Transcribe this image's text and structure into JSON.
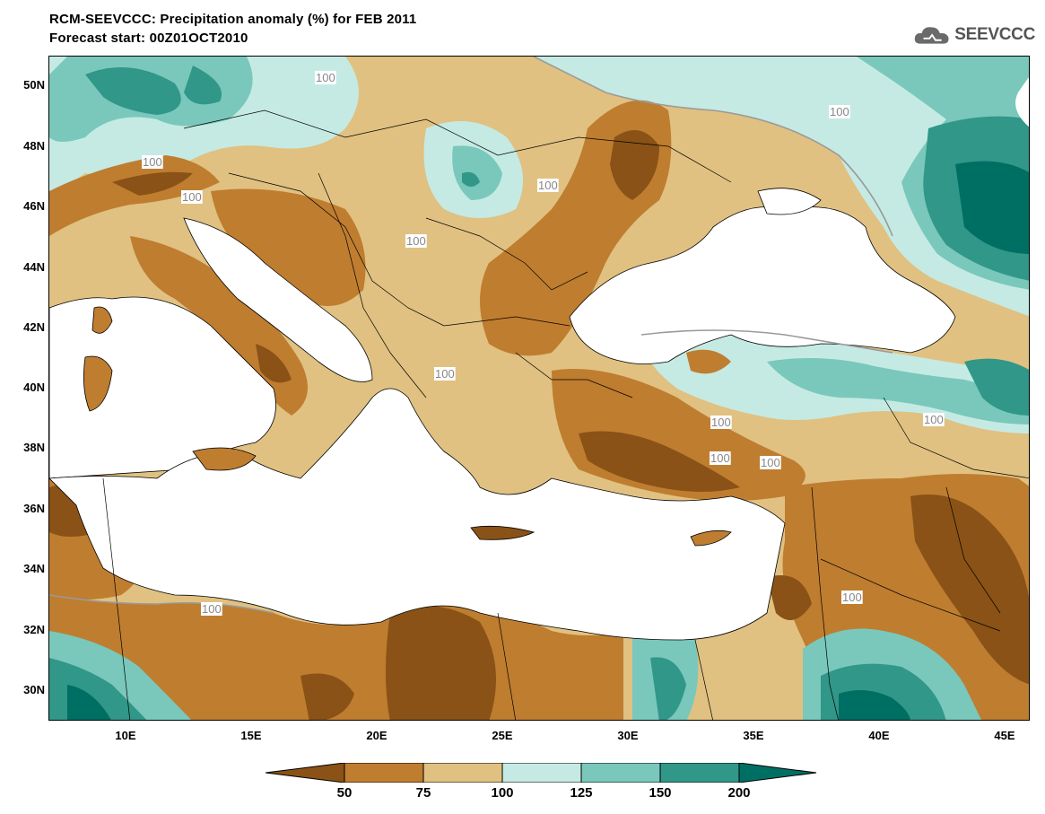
{
  "header": {
    "title_line1": "RCM-SEEVCCC: Precipitation anomaly (%) for FEB 2011",
    "title_line2": "Forecast start: 00Z01OCT2010"
  },
  "logo": {
    "text": "SEEVCCC",
    "icon": "cloud-icon"
  },
  "map": {
    "type": "filled-contour-map",
    "lon_range": [
      "7E",
      "46E"
    ],
    "lat_range": [
      "29N",
      "51N"
    ],
    "latitude_labels": [
      "50N",
      "48N",
      "46N",
      "44N",
      "42N",
      "40N",
      "38N",
      "36N",
      "34N",
      "32N",
      "30N"
    ],
    "longitude_labels": [
      "10E",
      "15E",
      "20E",
      "25E",
      "30E",
      "35E",
      "40E",
      "45E"
    ],
    "contour_label": "100"
  },
  "colorbar": {
    "levels": [
      "50",
      "75",
      "100",
      "125",
      "150",
      "200"
    ],
    "colors": [
      "#8a5216",
      "#bf7d30",
      "#e0c181",
      "#c5eae4",
      "#79c8bb",
      "#319788",
      "#006f63"
    ]
  }
}
